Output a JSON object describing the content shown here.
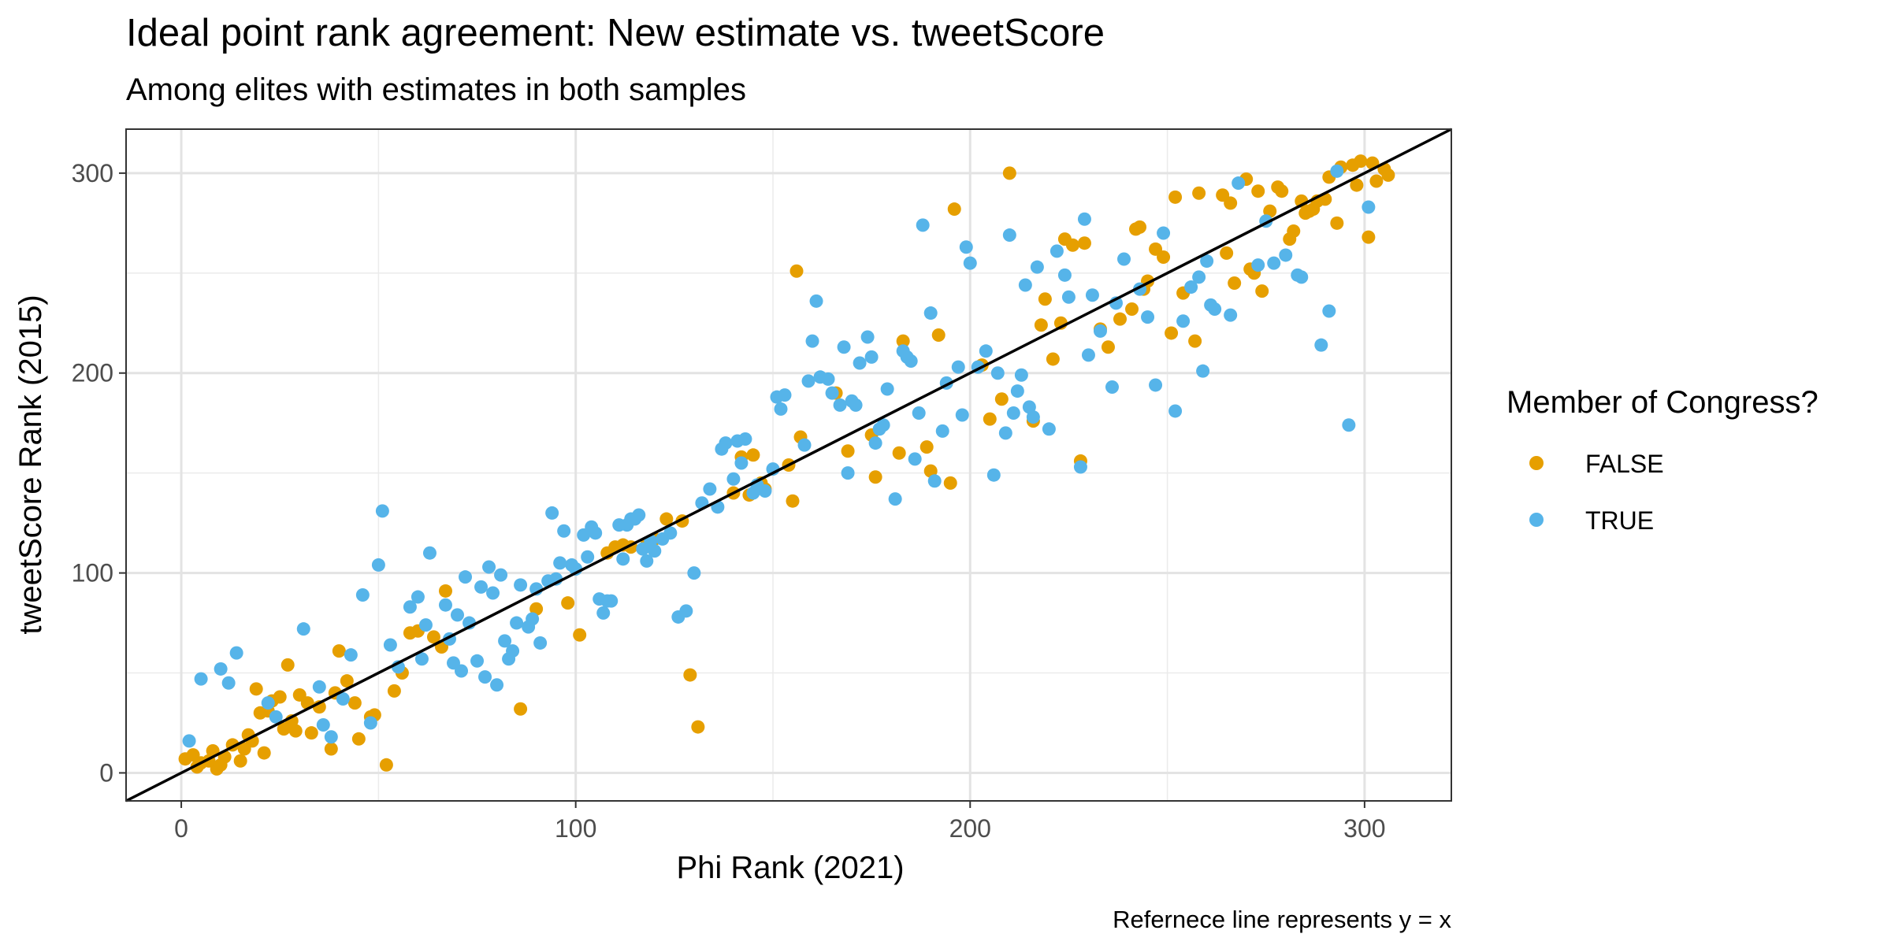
{
  "chart_data": {
    "type": "scatter",
    "title": "Ideal point rank agreement: New estimate vs. tweetScore",
    "subtitle": "Among elites with estimates in both samples",
    "xlabel": "Phi Rank (2021)",
    "ylabel": "tweetScore Rank (2015)",
    "caption": "Refernece line represents y = x",
    "xlim": [
      -14,
      322
    ],
    "ylim": [
      -14,
      322
    ],
    "x_ticks": [
      0,
      100,
      200,
      300
    ],
    "y_ticks": [
      0,
      100,
      200,
      300
    ],
    "grid": true,
    "reference_line": "y = x",
    "legend": {
      "title": "Member of Congress?",
      "position": "right",
      "entries": [
        {
          "label": "FALSE",
          "color": "#E69F00"
        },
        {
          "label": "TRUE",
          "color": "#56B4E9"
        }
      ]
    },
    "series": [
      {
        "name": "FALSE",
        "color": "#E69F00",
        "points": [
          [
            1,
            7
          ],
          [
            3,
            9
          ],
          [
            4,
            3
          ],
          [
            5,
            5
          ],
          [
            7,
            6
          ],
          [
            8,
            11
          ],
          [
            9,
            2
          ],
          [
            10,
            4
          ],
          [
            11,
            8
          ],
          [
            13,
            14
          ],
          [
            15,
            6
          ],
          [
            16,
            12
          ],
          [
            17,
            19
          ],
          [
            18,
            16
          ],
          [
            19,
            42
          ],
          [
            20,
            30
          ],
          [
            21,
            10
          ],
          [
            22,
            31
          ],
          [
            23,
            36
          ],
          [
            25,
            38
          ],
          [
            26,
            22
          ],
          [
            27,
            54
          ],
          [
            28,
            26
          ],
          [
            29,
            21
          ],
          [
            30,
            39
          ],
          [
            32,
            35
          ],
          [
            33,
            20
          ],
          [
            35,
            33
          ],
          [
            38,
            12
          ],
          [
            39,
            40
          ],
          [
            40,
            61
          ],
          [
            42,
            46
          ],
          [
            44,
            35
          ],
          [
            45,
            17
          ],
          [
            48,
            28
          ],
          [
            49,
            29
          ],
          [
            52,
            4
          ],
          [
            54,
            41
          ],
          [
            56,
            50
          ],
          [
            58,
            70
          ],
          [
            60,
            71
          ],
          [
            64,
            68
          ],
          [
            66,
            63
          ],
          [
            67,
            91
          ],
          [
            86,
            32
          ],
          [
            90,
            82
          ],
          [
            98,
            85
          ],
          [
            101,
            69
          ],
          [
            108,
            110
          ],
          [
            110,
            113
          ],
          [
            112,
            114
          ],
          [
            114,
            113
          ],
          [
            118,
            114
          ],
          [
            120,
            117
          ],
          [
            123,
            127
          ],
          [
            127,
            126
          ],
          [
            129,
            49
          ],
          [
            131,
            23
          ],
          [
            140,
            140
          ],
          [
            142,
            158
          ],
          [
            144,
            139
          ],
          [
            145,
            159
          ],
          [
            147,
            145
          ],
          [
            148,
            142
          ],
          [
            154,
            154
          ],
          [
            155,
            136
          ],
          [
            156,
            251
          ],
          [
            157,
            168
          ],
          [
            166,
            190
          ],
          [
            169,
            161
          ],
          [
            175,
            169
          ],
          [
            176,
            148
          ],
          [
            182,
            160
          ],
          [
            183,
            216
          ],
          [
            189,
            163
          ],
          [
            190,
            151
          ],
          [
            192,
            219
          ],
          [
            195,
            145
          ],
          [
            196,
            282
          ],
          [
            203,
            204
          ],
          [
            205,
            177
          ],
          [
            208,
            187
          ],
          [
            210,
            300
          ],
          [
            216,
            176
          ],
          [
            218,
            224
          ],
          [
            219,
            237
          ],
          [
            221,
            207
          ],
          [
            223,
            225
          ],
          [
            224,
            267
          ],
          [
            226,
            264
          ],
          [
            229,
            265
          ],
          [
            228,
            156
          ],
          [
            233,
            222
          ],
          [
            235,
            213
          ],
          [
            238,
            227
          ],
          [
            241,
            232
          ],
          [
            242,
            272
          ],
          [
            243,
            273
          ],
          [
            244,
            242
          ],
          [
            245,
            246
          ],
          [
            247,
            262
          ],
          [
            249,
            258
          ],
          [
            251,
            220
          ],
          [
            252,
            288
          ],
          [
            254,
            240
          ],
          [
            257,
            216
          ],
          [
            258,
            290
          ],
          [
            264,
            289
          ],
          [
            265,
            260
          ],
          [
            266,
            285
          ],
          [
            267,
            245
          ],
          [
            270,
            297
          ],
          [
            271,
            252
          ],
          [
            272,
            250
          ],
          [
            273,
            291
          ],
          [
            274,
            241
          ],
          [
            276,
            281
          ],
          [
            278,
            293
          ],
          [
            279,
            291
          ],
          [
            281,
            267
          ],
          [
            282,
            271
          ],
          [
            284,
            286
          ],
          [
            285,
            280
          ],
          [
            286,
            281
          ],
          [
            287,
            282
          ],
          [
            288,
            286
          ],
          [
            290,
            287
          ],
          [
            291,
            298
          ],
          [
            293,
            275
          ],
          [
            294,
            303
          ],
          [
            297,
            304
          ],
          [
            298,
            294
          ],
          [
            299,
            306
          ],
          [
            301,
            268
          ],
          [
            302,
            305
          ],
          [
            303,
            296
          ],
          [
            305,
            302
          ],
          [
            306,
            299
          ]
        ]
      },
      {
        "name": "TRUE",
        "color": "#56B4E9",
        "points": [
          [
            2,
            16
          ],
          [
            5,
            47
          ],
          [
            10,
            52
          ],
          [
            12,
            45
          ],
          [
            14,
            60
          ],
          [
            22,
            35
          ],
          [
            24,
            28
          ],
          [
            31,
            72
          ],
          [
            35,
            43
          ],
          [
            36,
            24
          ],
          [
            38,
            18
          ],
          [
            41,
            37
          ],
          [
            43,
            59
          ],
          [
            46,
            89
          ],
          [
            48,
            25
          ],
          [
            50,
            104
          ],
          [
            51,
            131
          ],
          [
            53,
            64
          ],
          [
            55,
            53
          ],
          [
            58,
            83
          ],
          [
            60,
            88
          ],
          [
            61,
            57
          ],
          [
            62,
            74
          ],
          [
            63,
            110
          ],
          [
            67,
            84
          ],
          [
            68,
            67
          ],
          [
            69,
            55
          ],
          [
            70,
            79
          ],
          [
            71,
            51
          ],
          [
            72,
            98
          ],
          [
            73,
            75
          ],
          [
            75,
            56
          ],
          [
            76,
            93
          ],
          [
            77,
            48
          ],
          [
            78,
            103
          ],
          [
            79,
            90
          ],
          [
            80,
            44
          ],
          [
            81,
            99
          ],
          [
            82,
            66
          ],
          [
            83,
            57
          ],
          [
            84,
            61
          ],
          [
            85,
            75
          ],
          [
            86,
            94
          ],
          [
            88,
            73
          ],
          [
            89,
            77
          ],
          [
            90,
            92
          ],
          [
            91,
            65
          ],
          [
            93,
            96
          ],
          [
            94,
            130
          ],
          [
            95,
            97
          ],
          [
            96,
            105
          ],
          [
            97,
            121
          ],
          [
            99,
            104
          ],
          [
            100,
            102
          ],
          [
            102,
            119
          ],
          [
            103,
            108
          ],
          [
            104,
            123
          ],
          [
            105,
            120
          ],
          [
            106,
            87
          ],
          [
            107,
            80
          ],
          [
            108,
            86
          ],
          [
            109,
            86
          ],
          [
            111,
            124
          ],
          [
            112,
            107
          ],
          [
            113,
            124
          ],
          [
            114,
            127
          ],
          [
            115,
            127
          ],
          [
            116,
            129
          ],
          [
            117,
            112
          ],
          [
            118,
            106
          ],
          [
            119,
            116
          ],
          [
            120,
            111
          ],
          [
            122,
            117
          ],
          [
            124,
            120
          ],
          [
            126,
            78
          ],
          [
            128,
            81
          ],
          [
            130,
            100
          ],
          [
            132,
            135
          ],
          [
            134,
            142
          ],
          [
            136,
            133
          ],
          [
            137,
            162
          ],
          [
            138,
            165
          ],
          [
            140,
            147
          ],
          [
            141,
            166
          ],
          [
            142,
            155
          ],
          [
            143,
            167
          ],
          [
            145,
            140
          ],
          [
            146,
            144
          ],
          [
            148,
            141
          ],
          [
            150,
            152
          ],
          [
            151,
            188
          ],
          [
            152,
            182
          ],
          [
            153,
            189
          ],
          [
            158,
            164
          ],
          [
            159,
            196
          ],
          [
            160,
            216
          ],
          [
            161,
            236
          ],
          [
            162,
            198
          ],
          [
            164,
            197
          ],
          [
            165,
            190
          ],
          [
            167,
            184
          ],
          [
            168,
            213
          ],
          [
            169,
            150
          ],
          [
            170,
            186
          ],
          [
            171,
            184
          ],
          [
            172,
            205
          ],
          [
            174,
            218
          ],
          [
            175,
            208
          ],
          [
            176,
            165
          ],
          [
            177,
            172
          ],
          [
            178,
            174
          ],
          [
            179,
            192
          ],
          [
            181,
            137
          ],
          [
            183,
            211
          ],
          [
            184,
            208
          ],
          [
            185,
            206
          ],
          [
            186,
            157
          ],
          [
            187,
            180
          ],
          [
            188,
            274
          ],
          [
            190,
            230
          ],
          [
            191,
            146
          ],
          [
            193,
            171
          ],
          [
            194,
            195
          ],
          [
            197,
            203
          ],
          [
            198,
            179
          ],
          [
            199,
            263
          ],
          [
            200,
            255
          ],
          [
            202,
            203
          ],
          [
            204,
            211
          ],
          [
            206,
            149
          ],
          [
            207,
            200
          ],
          [
            209,
            170
          ],
          [
            210,
            269
          ],
          [
            211,
            180
          ],
          [
            212,
            191
          ],
          [
            213,
            199
          ],
          [
            214,
            244
          ],
          [
            215,
            183
          ],
          [
            216,
            178
          ],
          [
            217,
            253
          ],
          [
            220,
            172
          ],
          [
            222,
            261
          ],
          [
            224,
            249
          ],
          [
            225,
            238
          ],
          [
            228,
            153
          ],
          [
            229,
            277
          ],
          [
            230,
            209
          ],
          [
            231,
            239
          ],
          [
            233,
            221
          ],
          [
            236,
            193
          ],
          [
            237,
            235
          ],
          [
            239,
            257
          ],
          [
            243,
            242
          ],
          [
            245,
            228
          ],
          [
            247,
            194
          ],
          [
            249,
            270
          ],
          [
            252,
            181
          ],
          [
            254,
            226
          ],
          [
            256,
            243
          ],
          [
            258,
            248
          ],
          [
            259,
            201
          ],
          [
            260,
            256
          ],
          [
            261,
            234
          ],
          [
            262,
            232
          ],
          [
            266,
            229
          ],
          [
            268,
            295
          ],
          [
            273,
            254
          ],
          [
            275,
            276
          ],
          [
            277,
            255
          ],
          [
            280,
            259
          ],
          [
            283,
            249
          ],
          [
            284,
            248
          ],
          [
            289,
            214
          ],
          [
            291,
            231
          ],
          [
            293,
            301
          ],
          [
            296,
            174
          ],
          [
            301,
            283
          ]
        ]
      }
    ]
  }
}
